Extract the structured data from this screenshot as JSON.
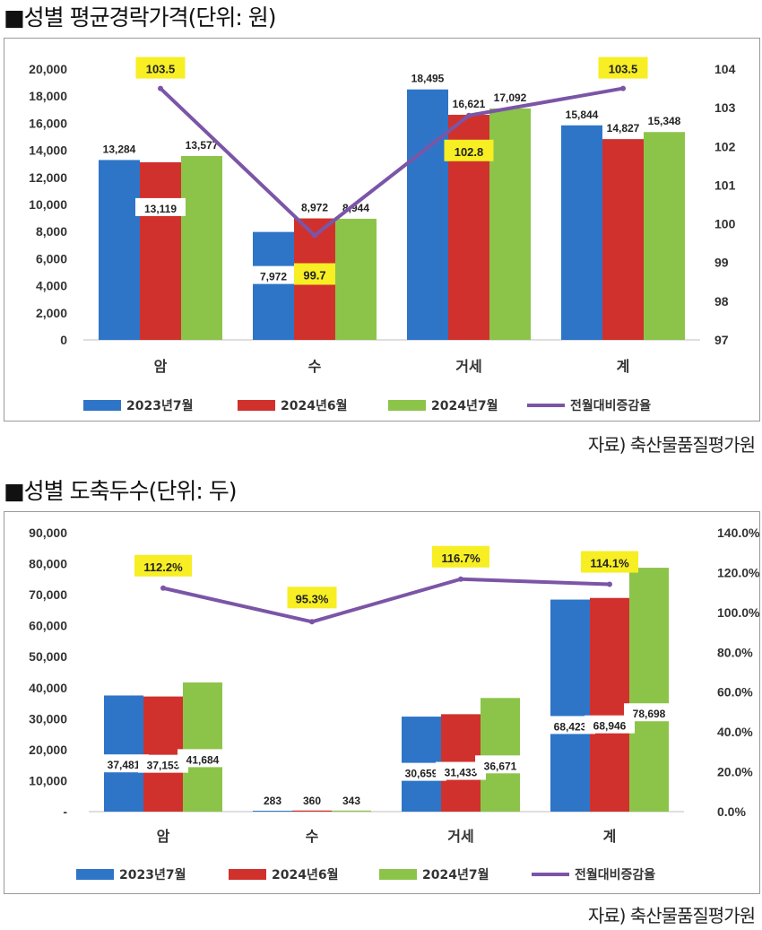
{
  "charts": [
    {
      "section_title": "■성별 평균경락가격(단위: 원)",
      "source": "자료) 축산물품질평가원",
      "chart_data": {
        "type": "bar",
        "categories": [
          "암",
          "수",
          "거세",
          "계"
        ],
        "series": [
          {
            "name": "2023년7월",
            "color": "#2E75C8",
            "values": [
              13284,
              7972,
              18495,
              15844
            ],
            "labels": [
              "13,284",
              "7,972",
              "18,495",
              "15,844"
            ]
          },
          {
            "name": "2024년6월",
            "color": "#D0312D",
            "values": [
              13119,
              8972,
              16621,
              14827
            ],
            "labels": [
              "13,119",
              "8,972",
              "16,621",
              "14,827"
            ]
          },
          {
            "name": "2024년7월",
            "color": "#8CC44A",
            "values": [
              13577,
              8944,
              17092,
              15348
            ],
            "labels": [
              "13,577",
              "8,944",
              "17,092",
              "15,348"
            ]
          }
        ],
        "line": {
          "name": "전월대비증감율",
          "color": "#7B55A6",
          "values": [
            103.5,
            99.7,
            102.8,
            103.5
          ],
          "labels": [
            "103.5",
            "99.7",
            "102.8",
            "103.5"
          ]
        },
        "ylim": [
          0,
          20000
        ],
        "y_ticks": [
          "0",
          "2,000",
          "4,000",
          "6,000",
          "8,000",
          "10,000",
          "12,000",
          "14,000",
          "16,000",
          "18,000",
          "20,000"
        ],
        "y2lim": [
          97,
          104
        ],
        "y2_ticks": [
          "97",
          "98",
          "99",
          "100",
          "101",
          "102",
          "103",
          "104"
        ],
        "legend_position": "bottom"
      }
    },
    {
      "section_title": "■성별 도축두수(단위: 두)",
      "source": "자료) 축산물품질평가원",
      "chart_data": {
        "type": "bar",
        "categories": [
          "암",
          "수",
          "거세",
          "계"
        ],
        "series": [
          {
            "name": "2023년7월",
            "color": "#2E75C8",
            "values": [
              37481,
              283,
              30659,
              68423
            ],
            "labels": [
              "37,481",
              "283",
              "30,659",
              "68,423"
            ]
          },
          {
            "name": "2024년6월",
            "color": "#D0312D",
            "values": [
              37153,
              360,
              31433,
              68946
            ],
            "labels": [
              "37,153",
              "360",
              "31,433",
              "68,946"
            ]
          },
          {
            "name": "2024년7월",
            "color": "#8CC44A",
            "values": [
              41684,
              343,
              36671,
              78698
            ],
            "labels": [
              "41,684",
              "343",
              "36,671",
              "78,698"
            ]
          }
        ],
        "line": {
          "name": "전월대비증감율",
          "color": "#7B55A6",
          "values": [
            112.2,
            95.3,
            116.7,
            114.1
          ],
          "labels": [
            "112.2%",
            "95.3%",
            "116.7%",
            "114.1%"
          ]
        },
        "ylim": [
          0,
          90000
        ],
        "y_ticks": [
          "-",
          "10,000",
          "20,000",
          "30,000",
          "40,000",
          "50,000",
          "60,000",
          "70,000",
          "80,000",
          "90,000"
        ],
        "y2lim": [
          0,
          140
        ],
        "y2_ticks": [
          "0.0%",
          "20.0%",
          "40.0%",
          "60.0%",
          "80.0%",
          "100.0%",
          "120.0%",
          "140.0%"
        ],
        "legend_position": "bottom"
      }
    }
  ]
}
